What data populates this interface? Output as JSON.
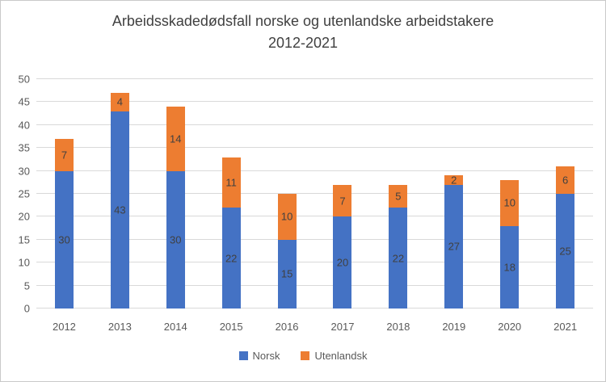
{
  "title": {
    "line1": "Arbeidsskadedødsfall norske og utenlandske arbeidstakere",
    "line2": "2012-2021"
  },
  "chart_data": {
    "type": "bar",
    "stacked": true,
    "title": "Arbeidsskadedødsfall norske og utenlandske arbeidstakere 2012-2021",
    "categories": [
      "2012",
      "2013",
      "2014",
      "2015",
      "2016",
      "2017",
      "2018",
      "2019",
      "2020",
      "2021"
    ],
    "series": [
      {
        "name": "Norsk",
        "color": "#4472C4",
        "values": [
          30,
          43,
          30,
          22,
          15,
          20,
          22,
          27,
          18,
          25
        ]
      },
      {
        "name": "Utenlandsk",
        "color": "#ED7D31",
        "values": [
          7,
          4,
          14,
          11,
          10,
          7,
          5,
          2,
          10,
          6
        ]
      }
    ],
    "xlabel": "",
    "ylabel": "",
    "ylim": [
      0,
      50
    ],
    "yticks": [
      0,
      5,
      10,
      15,
      20,
      25,
      30,
      35,
      40,
      45,
      50
    ],
    "grid": true,
    "legend_position": "bottom",
    "data_labels": true
  },
  "colors": {
    "norsk_blue": "#4472C4",
    "utenlandsk_orange": "#ED7D31",
    "gridline": "#D9D9D9",
    "axis_text": "#595959",
    "title_text": "#404040",
    "data_label_text": "#404040",
    "border": "#C9C9C9",
    "background": "#FFFFFF"
  }
}
